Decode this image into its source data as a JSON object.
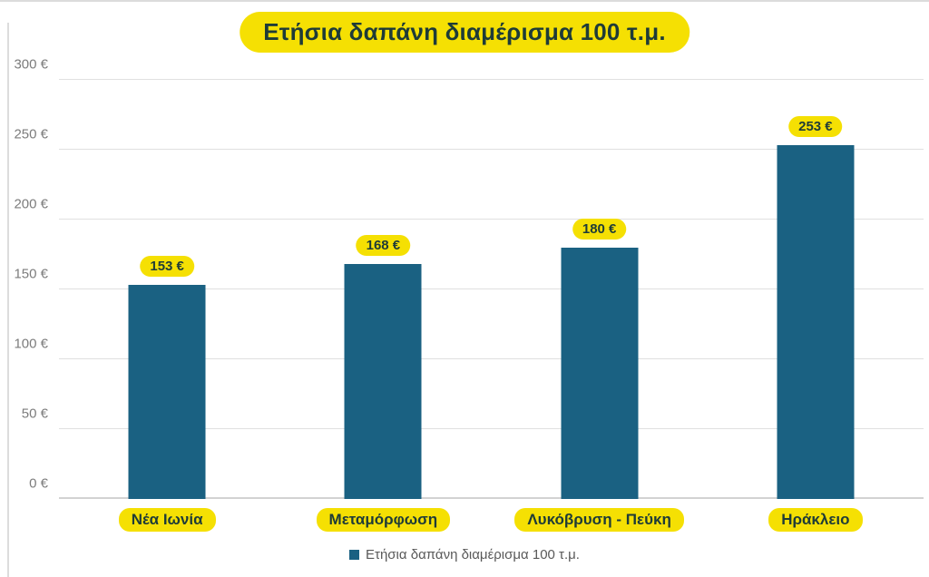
{
  "title": "Ετήσια δαπάνη διαμέρισμα 100 τ.μ.",
  "legend": {
    "label": "Ετήσια δαπάνη διαμέρισμα 100 τ.μ.",
    "marker_color": "#1a6182",
    "position": "bottom"
  },
  "colors": {
    "bar": "#1a6182",
    "highlight_yellow": "#f5e003",
    "dark_text_on_yellow": "#1e3b38",
    "axis_text_gray": "#7c7c7c",
    "legend_text_gray": "#595959",
    "gridline_gray": "#e0e0e0"
  },
  "chart_data": {
    "type": "bar",
    "title": "Ετήσια δαπάνη διαμέρισμα 100 τ.μ.",
    "categories": [
      "Νέα Ιωνία",
      "Μεταμόρφωση",
      "Λυκόβρυση - Πεύκη",
      "Ηράκλειο"
    ],
    "values": [
      153,
      168,
      180,
      253
    ],
    "value_labels": [
      "153 €",
      "168 €",
      "180 €",
      "253 €"
    ],
    "xlabel": "",
    "ylabel": "",
    "ylim": [
      0,
      300
    ],
    "ytick_step": 50,
    "ytick_labels": [
      "0 €",
      "50 €",
      "100 €",
      "150 €",
      "200 €",
      "250 €",
      "300 €"
    ],
    "grid": true,
    "legend_entries": [
      "Ετήσια δαπάνη διαμέρισμα 100 τ.μ."
    ]
  }
}
